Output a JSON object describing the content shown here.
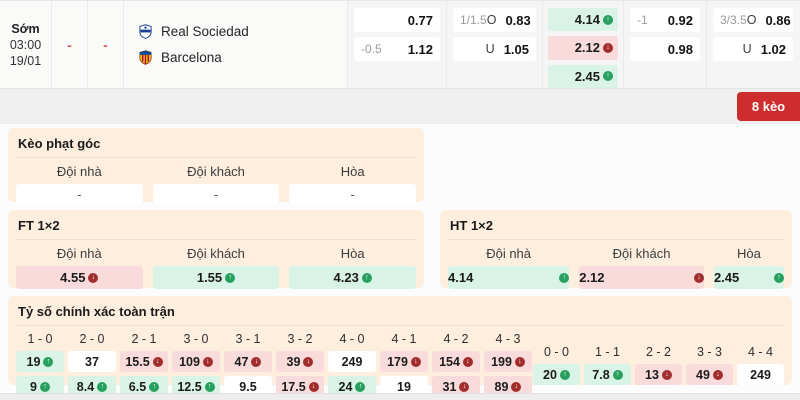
{
  "match": {
    "time_label": "Sớm",
    "time": "03:00",
    "date": "19/01",
    "score_home": "-",
    "score_away": "-",
    "home_team": "Real Sociedad",
    "away_team": "Barcelona"
  },
  "top_odds": {
    "handicap_ft": [
      {
        "line": "",
        "odd": "0.77"
      },
      {
        "line": "-0.5",
        "odd": "1.12"
      }
    ],
    "over_under_ft": [
      {
        "line": "1/1.5",
        "side": "O",
        "odd": "0.83"
      },
      {
        "line": "",
        "side": "U",
        "odd": "1.05"
      }
    ],
    "one_x_two": [
      {
        "odd": "4.14",
        "trend": "up"
      },
      {
        "odd": "2.12",
        "trend": "down"
      },
      {
        "odd": "2.45",
        "trend": "up"
      }
    ],
    "handicap_ht": [
      {
        "line": "-1",
        "odd": "0.92"
      },
      {
        "line": "",
        "odd": "0.98"
      }
    ],
    "over_under_ht": [
      {
        "line": "3/3.5",
        "side": "O",
        "odd": "0.86"
      },
      {
        "line": "",
        "side": "U",
        "odd": "1.02"
      }
    ]
  },
  "badge": {
    "label": "8 kèo"
  },
  "corner": {
    "title": "Kèo phạt góc",
    "columns": [
      "Đội nhà",
      "Đội khách",
      "Hòa"
    ],
    "cells": [
      {
        "odd": "-",
        "trend": "flat"
      },
      {
        "odd": "-",
        "trend": "flat"
      },
      {
        "odd": "-",
        "trend": "flat"
      }
    ]
  },
  "ft_1x2": {
    "title": "FT 1×2",
    "columns": [
      "Đội nhà",
      "Đội khách",
      "Hòa"
    ],
    "cells": [
      {
        "odd": "4.55",
        "trend": "down"
      },
      {
        "odd": "1.55",
        "trend": "up"
      },
      {
        "odd": "4.23",
        "trend": "up"
      }
    ]
  },
  "ht_1x2": {
    "title": "HT 1×2",
    "columns": [
      "Đội nhà",
      "Đội khách",
      "Hòa"
    ],
    "cells": [
      {
        "odd": "4.14",
        "trend": "up"
      },
      {
        "odd": "2.12",
        "trend": "down"
      },
      {
        "odd": "2.45",
        "trend": "up"
      }
    ]
  },
  "exact_score": {
    "title": "Tỷ số chính xác toàn trận",
    "main": {
      "labels": [
        "1 - 0",
        "2 - 0",
        "2 - 1",
        "3 - 0",
        "3 - 1",
        "3 - 2",
        "4 - 0",
        "4 - 1",
        "4 - 2",
        "4 - 3"
      ],
      "row1": [
        {
          "odd": "19",
          "trend": "up"
        },
        {
          "odd": "37",
          "trend": "flat"
        },
        {
          "odd": "15.5",
          "trend": "down"
        },
        {
          "odd": "109",
          "trend": "down"
        },
        {
          "odd": "47",
          "trend": "down"
        },
        {
          "odd": "39",
          "trend": "down"
        },
        {
          "odd": "249",
          "trend": "flat"
        },
        {
          "odd": "179",
          "trend": "down"
        },
        {
          "odd": "154",
          "trend": "down"
        },
        {
          "odd": "199",
          "trend": "down"
        }
      ],
      "row2": [
        {
          "odd": "9",
          "trend": "up"
        },
        {
          "odd": "8.4",
          "trend": "up"
        },
        {
          "odd": "6.5",
          "trend": "up"
        },
        {
          "odd": "12.5",
          "trend": "up"
        },
        {
          "odd": "9.5",
          "trend": "flat"
        },
        {
          "odd": "17.5",
          "trend": "down"
        },
        {
          "odd": "24",
          "trend": "up"
        },
        {
          "odd": "19",
          "trend": "flat"
        },
        {
          "odd": "31",
          "trend": "down"
        },
        {
          "odd": "89",
          "trend": "down"
        }
      ]
    },
    "draws": {
      "labels": [
        "0 - 0",
        "1 - 1",
        "2 - 2",
        "3 - 3",
        "4 - 4"
      ],
      "row": [
        {
          "odd": "20",
          "trend": "up"
        },
        {
          "odd": "7.8",
          "trend": "up"
        },
        {
          "odd": "13",
          "trend": "down"
        },
        {
          "odd": "49",
          "trend": "down"
        },
        {
          "odd": "249",
          "trend": "flat"
        }
      ]
    }
  },
  "colors": {
    "up_cell_bg": "#d9f3e6",
    "down_cell_bg": "#f9dbdb",
    "up_icon": "#27a05d",
    "down_icon": "#a22d2d",
    "panel_bg": "#fdeedd",
    "badge_bg": "#ce2d2d",
    "dash_red": "#d05c5c"
  }
}
